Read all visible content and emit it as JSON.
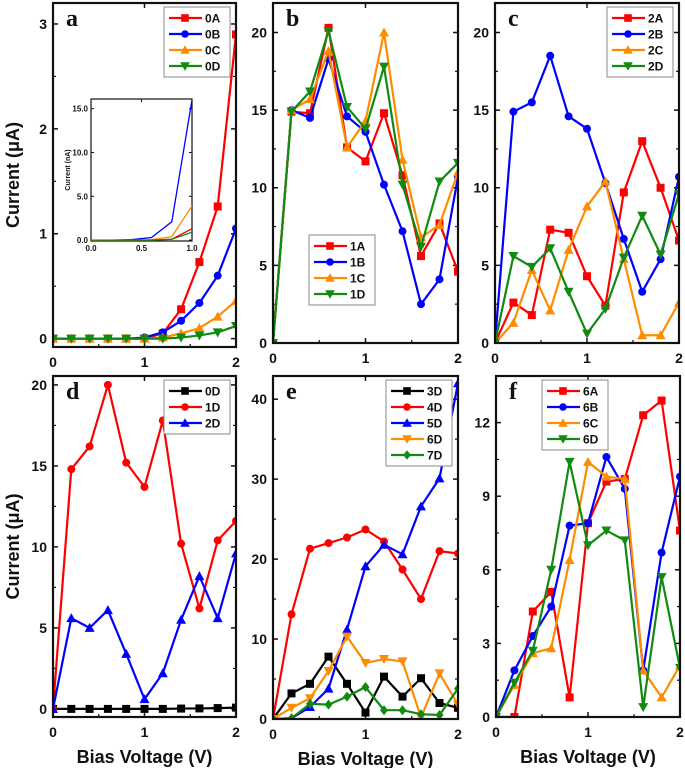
{
  "chart_data": [
    {
      "panel": "a",
      "type": "line",
      "ylabel": "Current (μA)",
      "xlabel": "",
      "xlim": [
        0,
        2
      ],
      "ylim": [
        -0.08,
        3.2
      ],
      "xticks": [
        0,
        1,
        2
      ],
      "yticks": [
        0,
        1,
        2,
        3
      ],
      "legend": "top-right",
      "x": [
        0,
        0.2,
        0.4,
        0.6,
        0.8,
        1.0,
        1.2,
        1.4,
        1.6,
        1.8,
        2.0
      ],
      "series": [
        {
          "name": "0A",
          "color": "#ff0000",
          "marker": "square",
          "values": [
            0,
            0,
            0,
            0,
            0,
            0,
            0.05,
            0.28,
            0.73,
            1.26,
            2.9
          ]
        },
        {
          "name": "0B",
          "color": "#0000ff",
          "marker": "circle",
          "values": [
            0,
            0,
            0,
            0,
            0,
            0.01,
            0.06,
            0.17,
            0.34,
            0.6,
            1.05
          ]
        },
        {
          "name": "0C",
          "color": "#ff8c00",
          "marker": "triangle-up",
          "values": [
            0,
            0,
            0,
            0,
            0,
            0,
            0.01,
            0.05,
            0.1,
            0.21,
            0.36
          ]
        },
        {
          "name": "0D",
          "color": "#108a10",
          "marker": "triangle-down",
          "values": [
            0,
            0,
            0,
            0,
            0,
            0,
            0,
            0.01,
            0.03,
            0.06,
            0.12
          ]
        }
      ],
      "inset": {
        "ylabel": "Current (nA)",
        "xlim": [
          0,
          1
        ],
        "ylim": [
          -0.1,
          16.1
        ],
        "xticks": [
          "0.0",
          "0.5",
          "1.0"
        ],
        "yticks": [
          "0.0",
          "5.0",
          "10.0",
          "15.0"
        ],
        "x": [
          0,
          0.2,
          0.4,
          0.6,
          0.8,
          1.0
        ],
        "series": [
          {
            "color": "#0000ff",
            "values": [
              0,
              0,
              0.05,
              0.3,
              2.1,
              16.0
            ]
          },
          {
            "color": "#ff8c00",
            "values": [
              0,
              0,
              0,
              0.05,
              0.4,
              3.9
            ]
          },
          {
            "color": "#ff0000",
            "values": [
              0,
              0,
              0,
              0,
              0.1,
              1.3
            ]
          },
          {
            "color": "#108a10",
            "values": [
              0,
              0,
              0,
              0,
              0.1,
              0.9
            ]
          }
        ]
      }
    },
    {
      "panel": "b",
      "type": "line",
      "xlabel": "",
      "ylabel": "",
      "xlim": [
        0,
        2
      ],
      "ylim": [
        0,
        21.9
      ],
      "xticks": [
        0,
        1,
        2
      ],
      "yticks": [
        0,
        5,
        10,
        15,
        20
      ],
      "legend": "lower-left",
      "x": [
        0,
        0.2,
        0.4,
        0.6,
        0.8,
        1.0,
        1.2,
        1.4,
        1.6,
        1.8,
        2.0
      ],
      "series": [
        {
          "name": "1A",
          "color": "#ff0000",
          "marker": "square",
          "values": [
            0,
            14.9,
            14.8,
            20.3,
            12.6,
            11.7,
            14.8,
            10.8,
            5.6,
            7.7,
            4.6
          ]
        },
        {
          "name": "1B",
          "color": "#0000ff",
          "marker": "circle",
          "values": [
            0,
            15.0,
            14.5,
            18.3,
            14.6,
            13.6,
            10.2,
            7.2,
            2.5,
            4.1,
            10.7
          ]
        },
        {
          "name": "1C",
          "color": "#ff8c00",
          "marker": "triangle-up",
          "values": [
            0,
            15.0,
            15.7,
            18.8,
            12.6,
            14.3,
            20.0,
            11.8,
            6.8,
            7.6,
            11.0
          ]
        },
        {
          "name": "1D",
          "color": "#108a10",
          "marker": "triangle-down",
          "values": [
            0,
            14.9,
            16.2,
            20.1,
            15.2,
            13.8,
            17.8,
            10.2,
            6.2,
            10.4,
            11.6
          ]
        }
      ]
    },
    {
      "panel": "c",
      "type": "line",
      "xlabel": "",
      "ylabel": "",
      "xlim": [
        0,
        2
      ],
      "ylim": [
        0,
        21.9
      ],
      "xticks": [
        0,
        1,
        2
      ],
      "yticks": [
        0,
        5,
        10,
        15,
        20
      ],
      "legend": "top-right",
      "x": [
        0,
        0.2,
        0.4,
        0.6,
        0.8,
        1.0,
        1.2,
        1.4,
        1.6,
        1.8,
        2.0
      ],
      "series": [
        {
          "name": "2A",
          "color": "#ff0000",
          "marker": "square",
          "values": [
            0,
            2.6,
            1.8,
            7.3,
            7.1,
            4.3,
            2.4,
            9.7,
            13.0,
            10.0,
            6.6
          ]
        },
        {
          "name": "2B",
          "color": "#0000ff",
          "marker": "circle",
          "values": [
            0,
            14.9,
            15.5,
            18.5,
            14.6,
            13.8,
            10.3,
            6.7,
            3.3,
            5.4,
            10.7
          ]
        },
        {
          "name": "2C",
          "color": "#ff8c00",
          "marker": "triangle-up",
          "values": [
            0,
            1.3,
            4.7,
            2.1,
            6.0,
            8.8,
            10.4,
            5.4,
            0.5,
            0.5,
            2.6
          ]
        },
        {
          "name": "2D",
          "color": "#108a10",
          "marker": "triangle-down",
          "values": [
            0,
            5.6,
            4.9,
            6.1,
            3.3,
            0.6,
            2.2,
            5.5,
            8.2,
            5.7,
            9.6
          ]
        }
      ]
    },
    {
      "panel": "d",
      "type": "line",
      "xlabel": "Bias Voltage (V)",
      "ylabel": "Current (μA)",
      "xlim": [
        0,
        2
      ],
      "ylim": [
        -0.5,
        20.55
      ],
      "xticks": [
        0,
        1,
        2
      ],
      "yticks": [
        0,
        5,
        10,
        15,
        20
      ],
      "legend": "top-right",
      "x": [
        0,
        0.2,
        0.4,
        0.6,
        0.8,
        1.0,
        1.2,
        1.4,
        1.6,
        1.8,
        2.0
      ],
      "series": [
        {
          "name": "0D",
          "color": "#000000",
          "marker": "square",
          "values": [
            0,
            0,
            0,
            0,
            0,
            0,
            0,
            0.02,
            0.03,
            0.05,
            0.08
          ]
        },
        {
          "name": "1D",
          "color": "#ff0000",
          "marker": "circle",
          "values": [
            0,
            14.8,
            16.2,
            20.0,
            15.2,
            13.7,
            17.8,
            10.2,
            6.2,
            10.4,
            11.6
          ]
        },
        {
          "name": "2D",
          "color": "#0000ff",
          "marker": "triangle-up",
          "values": [
            0,
            5.6,
            5.0,
            6.1,
            3.4,
            0.6,
            2.2,
            5.5,
            8.2,
            5.6,
            9.6
          ]
        }
      ]
    },
    {
      "panel": "e",
      "type": "line",
      "xlabel": "Bias Voltage (V)",
      "ylabel": "",
      "xlim": [
        0,
        2
      ],
      "ylim": [
        0,
        42.9
      ],
      "xticks": [
        0,
        1,
        2
      ],
      "yticks": [
        0,
        10,
        20,
        30,
        40
      ],
      "legend": "top-right",
      "x": [
        0,
        0.2,
        0.4,
        0.6,
        0.8,
        1.0,
        1.2,
        1.4,
        1.6,
        1.8,
        2.0
      ],
      "series": [
        {
          "name": "3D",
          "color": "#000000",
          "marker": "square",
          "values": [
            0,
            3.2,
            4.4,
            7.8,
            4.4,
            0.8,
            5.3,
            2.8,
            5.1,
            2.0,
            1.4
          ]
        },
        {
          "name": "4D",
          "color": "#ff0000",
          "marker": "circle",
          "values": [
            0,
            13.1,
            21.3,
            22.0,
            22.7,
            23.7,
            22.2,
            18.7,
            15.0,
            21.0,
            20.7
          ]
        },
        {
          "name": "5D",
          "color": "#0000ff",
          "marker": "triangle-up",
          "values": [
            0,
            0.1,
            1.5,
            3.8,
            11.2,
            19.1,
            21.8,
            20.6,
            26.6,
            30.1,
            42.0
          ]
        },
        {
          "name": "6D",
          "color": "#ff8c00",
          "marker": "triangle-down",
          "values": [
            0,
            1.4,
            2.6,
            6.0,
            10.3,
            7.0,
            7.5,
            7.2,
            0.2,
            5.7,
            1.8
          ]
        },
        {
          "name": "7D",
          "color": "#108a10",
          "marker": "diamond",
          "values": [
            0,
            0.1,
            1.9,
            1.8,
            2.8,
            4.0,
            1.1,
            1.1,
            0.6,
            0.5,
            3.8
          ]
        }
      ]
    },
    {
      "panel": "f",
      "type": "line",
      "xlabel": "Bias Voltage (V)",
      "ylabel": "",
      "xlim": [
        0,
        2
      ],
      "ylim": [
        0,
        13.9
      ],
      "xticks": [
        0,
        1,
        2
      ],
      "yticks": [
        0,
        3,
        6,
        9,
        12
      ],
      "legend": "top-center",
      "x": [
        0,
        0.2,
        0.4,
        0.6,
        0.8,
        1.0,
        1.2,
        1.4,
        1.6,
        1.8,
        2.0
      ],
      "series": [
        {
          "name": "6A",
          "color": "#ff0000",
          "marker": "square",
          "values": [
            0,
            0,
            4.3,
            5.1,
            0.8,
            7.9,
            9.6,
            9.7,
            12.3,
            12.9,
            7.6
          ]
        },
        {
          "name": "6B",
          "color": "#0000ff",
          "marker": "circle",
          "values": [
            0,
            1.9,
            3.3,
            4.5,
            7.8,
            7.9,
            10.6,
            9.3,
            1.9,
            6.7,
            9.8
          ]
        },
        {
          "name": "6C",
          "color": "#ff8c00",
          "marker": "triangle-up",
          "values": [
            0,
            1.3,
            2.6,
            2.8,
            6.4,
            10.4,
            9.8,
            9.7,
            1.9,
            0.8,
            2.1
          ]
        },
        {
          "name": "6D",
          "color": "#108a10",
          "marker": "triangle-down",
          "values": [
            0,
            1.4,
            2.7,
            6.0,
            10.4,
            7.0,
            7.6,
            7.2,
            0.4,
            5.7,
            2.0
          ]
        }
      ]
    }
  ]
}
